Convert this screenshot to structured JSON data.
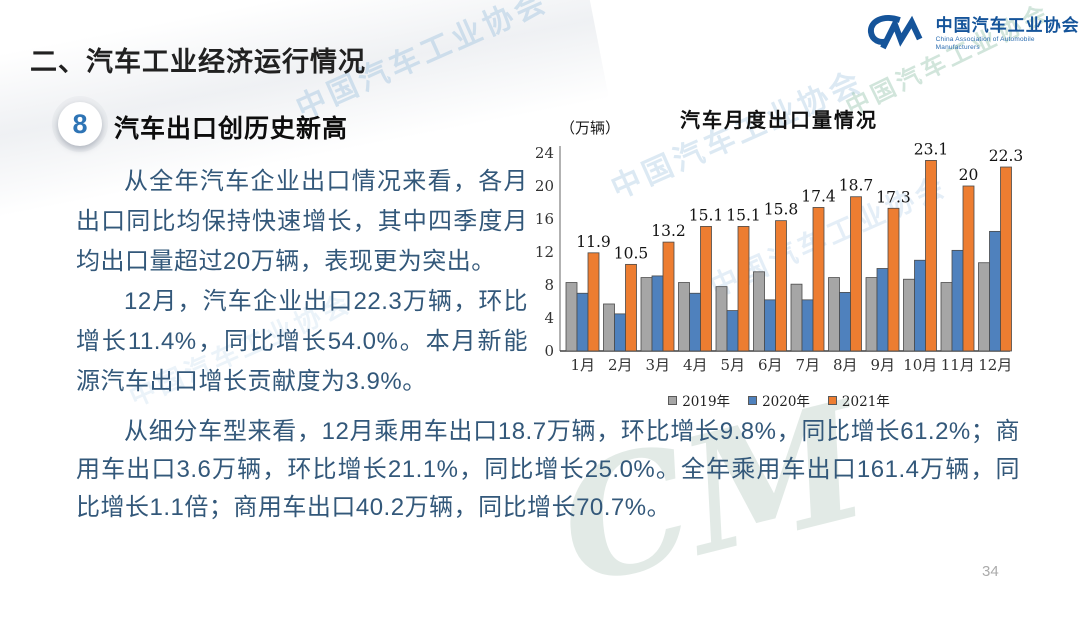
{
  "slide": {
    "section_title": "二、汽车工业经济运行情况",
    "point_number": "8",
    "point_title": "汽车出口创历史新高",
    "page_number": "34"
  },
  "logo": {
    "monogram": "CM",
    "org_cn": "中国汽车工业协会",
    "org_en": "China Association of Automobile Manufacturers",
    "brand_color": "#15549a"
  },
  "paragraphs": {
    "p1": "从全年汽车企业出口情况来看，各月出口同比均保持快速增长，其中四季度月均出口量超过20万辆，表现更为突出。",
    "p2": "12月，汽车企业出口22.3万辆，环比增长11.4%，同比增长54.0%。本月新能源汽车出口增长贡献度为3.9%。",
    "p3": "从细分车型来看，12月乘用车出口18.7万辆，环比增长9.8%，同比增长61.2%；商用车出口3.6万辆，环比增长21.1%，同比增长25.0%。全年乘用车出口161.4万辆，同比增长1.1倍；商用车出口40.2万辆，同比增长70.7%。"
  },
  "chart_data": {
    "type": "bar",
    "title": "汽车月度出口量情况",
    "unit_label": "（万辆）",
    "categories": [
      "1月",
      "2月",
      "3月",
      "4月",
      "5月",
      "6月",
      "7月",
      "8月",
      "9月",
      "10月",
      "11月",
      "12月"
    ],
    "series": [
      {
        "name": "2019年",
        "color": "#A6A6A6",
        "values": [
          8.3,
          5.7,
          8.9,
          8.3,
          7.8,
          9.6,
          8.1,
          8.9,
          8.9,
          8.7,
          8.3,
          10.7
        ]
      },
      {
        "name": "2020年",
        "color": "#4F81BD",
        "values": [
          7.0,
          4.5,
          9.1,
          7.0,
          4.9,
          6.2,
          6.2,
          7.1,
          10.0,
          11.0,
          12.2,
          14.5
        ]
      },
      {
        "name": "2021年",
        "color": "#ED7D31",
        "values": [
          11.9,
          10.5,
          13.2,
          15.1,
          15.1,
          15.8,
          17.4,
          18.7,
          17.3,
          23.1,
          20,
          22.3
        ],
        "labels": [
          "11.9",
          "10.5",
          "13.2",
          "15.1",
          "15.1",
          "15.8",
          "17.4",
          "18.7",
          "17.3",
          "23.1",
          "20",
          "22.3"
        ]
      }
    ],
    "ylim": [
      0,
      24
    ],
    "yticks": [
      0,
      4,
      8,
      12,
      16,
      20,
      24
    ],
    "grid": false,
    "legend_position": "bottom",
    "labeled_series": "2021年"
  },
  "watermark": {
    "text": "中国汽车工业协会",
    "monogram": "CM"
  }
}
